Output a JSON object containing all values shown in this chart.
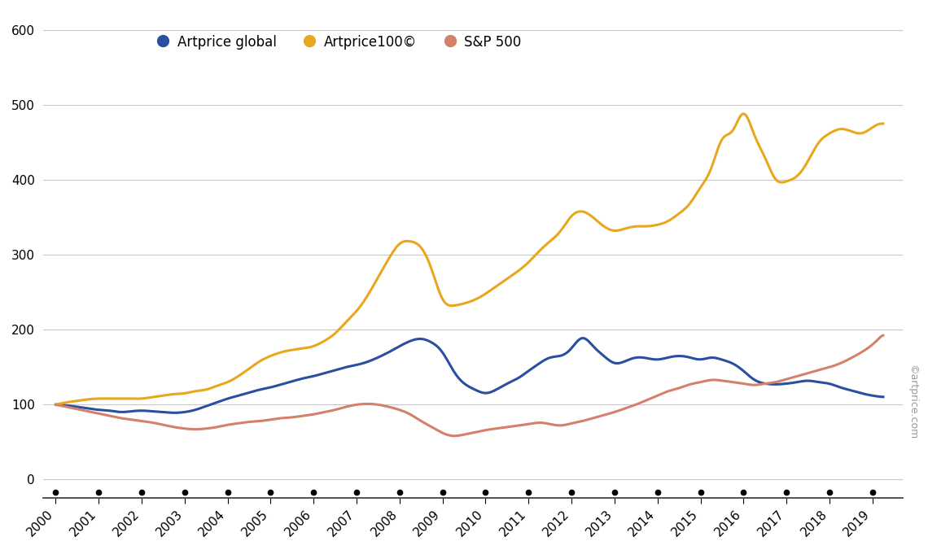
{
  "background_color": "#ffffff",
  "grid_color": "#c8c8c8",
  "ylim": [
    -25,
    625
  ],
  "xlim": [
    1999.7,
    2019.7
  ],
  "yticks": [
    0,
    100,
    200,
    300,
    400,
    500,
    600
  ],
  "xticks": [
    2000,
    2001,
    2002,
    2003,
    2004,
    2005,
    2006,
    2007,
    2008,
    2009,
    2010,
    2011,
    2012,
    2013,
    2014,
    2015,
    2016,
    2017,
    2018,
    2019
  ],
  "legend_labels": [
    "Artprice global",
    "Artprice100©",
    "S&P 500"
  ],
  "colors": {
    "artprice_global": "#2b4fa0",
    "artprice100": "#e8a81e",
    "sp500": "#d4806a"
  },
  "line_width": 2.2,
  "watermark": "©artprice.com",
  "artprice_global_x": [
    2000.0,
    2000.25,
    2000.5,
    2000.75,
    2001.0,
    2001.25,
    2001.5,
    2001.75,
    2002.0,
    2002.25,
    2002.5,
    2002.75,
    2003.0,
    2003.25,
    2003.5,
    2003.75,
    2004.0,
    2004.25,
    2004.5,
    2004.75,
    2005.0,
    2005.25,
    2005.5,
    2005.75,
    2006.0,
    2006.25,
    2006.5,
    2006.75,
    2007.0,
    2007.25,
    2007.5,
    2007.75,
    2008.0,
    2008.25,
    2008.5,
    2008.75,
    2009.0,
    2009.25,
    2009.5,
    2009.75,
    2010.0,
    2010.25,
    2010.5,
    2010.75,
    2011.0,
    2011.25,
    2011.5,
    2011.75,
    2012.0,
    2012.25,
    2012.5,
    2012.75,
    2013.0,
    2013.25,
    2013.5,
    2013.75,
    2014.0,
    2014.25,
    2014.5,
    2014.75,
    2015.0,
    2015.25,
    2015.5,
    2015.75,
    2016.0,
    2016.25,
    2016.5,
    2016.75,
    2017.0,
    2017.25,
    2017.5,
    2017.75,
    2018.0,
    2018.25,
    2018.5,
    2018.75,
    2019.0,
    2019.25
  ],
  "artprice_global_y": [
    100,
    99,
    97,
    95,
    93,
    92,
    90,
    91,
    92,
    91,
    90,
    89,
    90,
    93,
    98,
    103,
    108,
    112,
    116,
    120,
    123,
    127,
    131,
    135,
    138,
    142,
    146,
    150,
    153,
    157,
    163,
    170,
    178,
    185,
    188,
    183,
    170,
    145,
    128,
    120,
    115,
    120,
    128,
    135,
    145,
    155,
    163,
    165,
    175,
    190,
    178,
    165,
    155,
    158,
    163,
    162,
    160,
    163,
    165,
    163,
    160,
    163,
    160,
    155,
    145,
    133,
    128,
    127,
    128,
    130,
    132,
    130,
    128,
    123,
    119,
    115,
    112,
    110
  ],
  "artprice100_x": [
    2000.0,
    2000.25,
    2000.5,
    2000.75,
    2001.0,
    2001.25,
    2001.5,
    2001.75,
    2002.0,
    2002.25,
    2002.5,
    2002.75,
    2003.0,
    2003.25,
    2003.5,
    2003.75,
    2004.0,
    2004.25,
    2004.5,
    2004.75,
    2005.0,
    2005.25,
    2005.5,
    2005.75,
    2006.0,
    2006.25,
    2006.5,
    2006.75,
    2007.0,
    2007.25,
    2007.5,
    2007.75,
    2008.0,
    2008.25,
    2008.5,
    2008.75,
    2009.0,
    2009.25,
    2009.5,
    2009.75,
    2010.0,
    2010.25,
    2010.5,
    2010.75,
    2011.0,
    2011.25,
    2011.5,
    2011.75,
    2012.0,
    2012.25,
    2012.5,
    2012.75,
    2013.0,
    2013.25,
    2013.5,
    2013.75,
    2014.0,
    2014.25,
    2014.5,
    2014.75,
    2015.0,
    2015.25,
    2015.5,
    2015.75,
    2016.0,
    2016.25,
    2016.5,
    2016.75,
    2017.0,
    2017.25,
    2017.5,
    2017.75,
    2018.0,
    2018.25,
    2018.5,
    2018.75,
    2019.0,
    2019.25
  ],
  "artprice100_y": [
    100,
    103,
    105,
    107,
    108,
    108,
    108,
    108,
    108,
    110,
    112,
    114,
    115,
    118,
    120,
    125,
    130,
    138,
    148,
    158,
    165,
    170,
    173,
    175,
    178,
    185,
    195,
    210,
    225,
    245,
    270,
    295,
    315,
    318,
    310,
    280,
    240,
    232,
    235,
    240,
    248,
    258,
    268,
    278,
    290,
    305,
    318,
    332,
    352,
    358,
    350,
    338,
    332,
    335,
    338,
    338,
    340,
    345,
    355,
    368,
    390,
    415,
    455,
    465,
    490,
    460,
    430,
    400,
    398,
    405,
    425,
    450,
    462,
    468,
    465,
    462,
    470,
    475
  ],
  "sp500_x": [
    2000.0,
    2000.25,
    2000.5,
    2000.75,
    2001.0,
    2001.25,
    2001.5,
    2001.75,
    2002.0,
    2002.25,
    2002.5,
    2002.75,
    2003.0,
    2003.25,
    2003.5,
    2003.75,
    2004.0,
    2004.25,
    2004.5,
    2004.75,
    2005.0,
    2005.25,
    2005.5,
    2005.75,
    2006.0,
    2006.25,
    2006.5,
    2006.75,
    2007.0,
    2007.25,
    2007.5,
    2007.75,
    2008.0,
    2008.25,
    2008.5,
    2008.75,
    2009.0,
    2009.25,
    2009.5,
    2009.75,
    2010.0,
    2010.25,
    2010.5,
    2010.75,
    2011.0,
    2011.25,
    2011.5,
    2011.75,
    2012.0,
    2012.25,
    2012.5,
    2012.75,
    2013.0,
    2013.25,
    2013.5,
    2013.75,
    2014.0,
    2014.25,
    2014.5,
    2014.75,
    2015.0,
    2015.25,
    2015.5,
    2015.75,
    2016.0,
    2016.25,
    2016.5,
    2016.75,
    2017.0,
    2017.25,
    2017.5,
    2017.75,
    2018.0,
    2018.25,
    2018.5,
    2018.75,
    2019.0,
    2019.25
  ],
  "sp500_y": [
    100,
    97,
    94,
    91,
    88,
    85,
    82,
    80,
    78,
    76,
    73,
    70,
    68,
    67,
    68,
    70,
    73,
    75,
    77,
    78,
    80,
    82,
    83,
    85,
    87,
    90,
    93,
    97,
    100,
    101,
    100,
    97,
    93,
    87,
    78,
    70,
    62,
    58,
    60,
    63,
    66,
    68,
    70,
    72,
    74,
    76,
    74,
    72,
    75,
    78,
    82,
    86,
    90,
    95,
    100,
    106,
    112,
    118,
    122,
    127,
    130,
    133,
    132,
    130,
    128,
    126,
    128,
    130,
    134,
    138,
    142,
    146,
    150,
    155,
    162,
    170,
    180,
    195
  ]
}
